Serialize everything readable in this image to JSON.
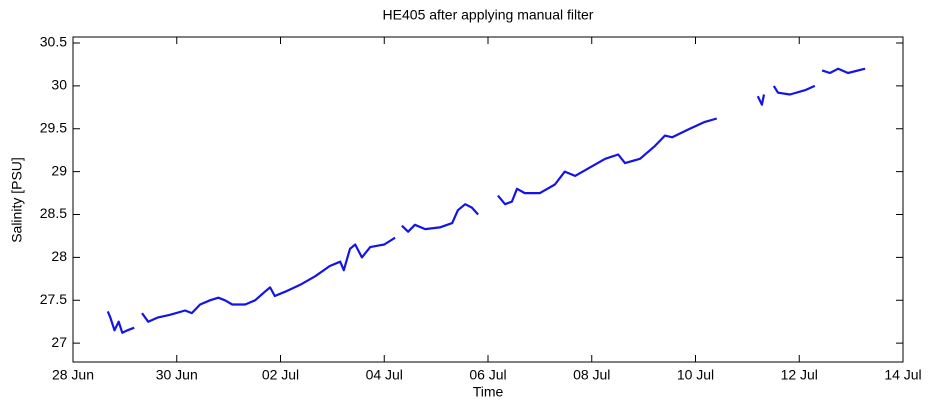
{
  "chart_data": {
    "type": "line",
    "title": "HE405 after applying manual filter",
    "xlabel": "Time",
    "ylabel": "Salinity [PSU]",
    "x": [
      0.67,
      0.72,
      0.8,
      0.88,
      0.95,
      1.05,
      1.18,
      null,
      1.33,
      1.45,
      1.64,
      1.87,
      2.16,
      2.29,
      2.45,
      2.64,
      2.8,
      2.93,
      3.07,
      3.32,
      3.51,
      3.7,
      3.8,
      3.89,
      4.09,
      4.38,
      4.67,
      4.95,
      5.15,
      5.22,
      5.34,
      5.44,
      5.57,
      5.73,
      6.0,
      6.21,
      null,
      6.34,
      6.46,
      6.59,
      6.79,
      7.07,
      7.31,
      7.42,
      7.56,
      7.69,
      7.81,
      null,
      8.19,
      8.33,
      8.46,
      8.56,
      8.71,
      9.0,
      9.29,
      9.48,
      9.68,
      9.97,
      10.26,
      10.51,
      10.64,
      10.93,
      11.22,
      11.41,
      11.55,
      11.89,
      12.18,
      12.41,
      null,
      13.2,
      13.28,
      13.32,
      null,
      13.51,
      13.59,
      13.82,
      14.11,
      14.3,
      null,
      14.44,
      14.59,
      14.75,
      14.94,
      15.27
    ],
    "series": [
      {
        "name": "Salinity",
        "color": "#1414e6",
        "values": [
          27.37,
          27.3,
          27.15,
          27.25,
          27.12,
          27.15,
          27.18,
          null,
          27.35,
          27.25,
          27.3,
          27.33,
          27.38,
          27.35,
          27.45,
          27.5,
          27.53,
          27.5,
          27.45,
          27.45,
          27.5,
          27.6,
          27.65,
          27.55,
          27.6,
          27.68,
          27.78,
          27.9,
          27.95,
          27.85,
          28.1,
          28.15,
          28.0,
          28.12,
          28.15,
          28.23,
          null,
          28.37,
          28.3,
          28.38,
          28.33,
          28.35,
          28.4,
          28.55,
          28.62,
          28.58,
          28.5,
          null,
          28.72,
          28.62,
          28.65,
          28.8,
          28.75,
          28.75,
          28.85,
          29.0,
          28.95,
          29.05,
          29.15,
          29.2,
          29.1,
          29.15,
          29.3,
          29.42,
          29.4,
          29.5,
          29.58,
          29.62,
          null,
          29.88,
          29.78,
          29.9,
          null,
          30.0,
          29.92,
          29.9,
          29.95,
          30.0,
          null,
          30.18,
          30.15,
          30.2,
          30.15,
          30.2
        ]
      }
    ],
    "xlim": [
      0,
      16
    ],
    "xticks": [
      {
        "value": 0,
        "label": "28 Jun"
      },
      {
        "value": 2,
        "label": "30 Jun"
      },
      {
        "value": 4,
        "label": "02 Jul"
      },
      {
        "value": 6,
        "label": "04 Jul"
      },
      {
        "value": 8,
        "label": "06 Jul"
      },
      {
        "value": 10,
        "label": "08 Jul"
      },
      {
        "value": 12,
        "label": "10 Jul"
      },
      {
        "value": 14,
        "label": "12 Jul"
      },
      {
        "value": 16,
        "label": "14 Jul"
      }
    ],
    "ylim": [
      26.78,
      30.57
    ],
    "yticks": [
      27,
      27.5,
      28,
      28.5,
      29,
      29.5,
      30,
      30.5
    ],
    "grid": false
  }
}
